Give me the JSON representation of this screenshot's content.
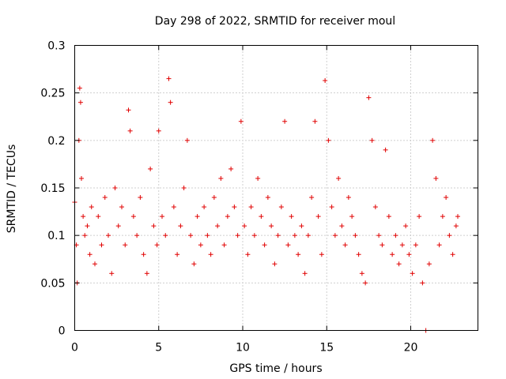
{
  "chart_data": {
    "type": "scatter",
    "title": "Day 298 of 2022, SRMTID for receiver moul",
    "xlabel": "GPS time / hours",
    "ylabel": "SRMTID / TECUs",
    "xlim": [
      0,
      24
    ],
    "ylim": [
      0,
      0.3
    ],
    "x_ticks": [
      0,
      5,
      10,
      15,
      20
    ],
    "x_tick_labels": [
      "0",
      "5",
      "10",
      "15",
      "20"
    ],
    "y_ticks": [
      0,
      0.05,
      0.1,
      0.15,
      0.2,
      0.25,
      0.3
    ],
    "y_tick_labels": [
      "0",
      "0.05",
      "0.1",
      "0.15",
      "0.2",
      "0.25",
      "0.3"
    ],
    "grid": true,
    "marker": "plus",
    "color": "#e00000",
    "series": [
      {
        "name": "SRMTID",
        "x": [
          0.0,
          0.1,
          0.15,
          0.25,
          0.3,
          0.35,
          0.4,
          0.5,
          0.6,
          0.75,
          0.9,
          1.0,
          1.2,
          1.4,
          1.6,
          1.8,
          2.0,
          2.2,
          2.4,
          2.6,
          2.8,
          3.0,
          3.2,
          3.3,
          3.5,
          3.7,
          3.9,
          4.1,
          4.3,
          4.5,
          4.7,
          4.9,
          5.0,
          5.2,
          5.4,
          5.6,
          5.7,
          5.9,
          6.1,
          6.3,
          6.5,
          6.7,
          6.9,
          7.1,
          7.3,
          7.5,
          7.7,
          7.9,
          8.1,
          8.3,
          8.5,
          8.7,
          8.9,
          9.1,
          9.3,
          9.5,
          9.7,
          9.9,
          10.1,
          10.3,
          10.5,
          10.7,
          10.9,
          11.1,
          11.3,
          11.5,
          11.7,
          11.9,
          12.1,
          12.3,
          12.5,
          12.7,
          12.9,
          13.1,
          13.3,
          13.5,
          13.7,
          13.9,
          14.1,
          14.3,
          14.5,
          14.7,
          14.9,
          15.1,
          15.3,
          15.5,
          15.7,
          15.9,
          16.1,
          16.3,
          16.5,
          16.7,
          16.9,
          17.1,
          17.3,
          17.5,
          17.7,
          17.9,
          18.1,
          18.3,
          18.5,
          18.7,
          18.9,
          19.1,
          19.3,
          19.5,
          19.7,
          19.9,
          20.1,
          20.3,
          20.5,
          20.7,
          20.9,
          21.1,
          21.3,
          21.5,
          21.7,
          21.9,
          22.1,
          22.3,
          22.5,
          22.7,
          22.8
        ],
        "y": [
          0.135,
          0.09,
          0.05,
          0.2,
          0.255,
          0.24,
          0.16,
          0.12,
          0.1,
          0.11,
          0.08,
          0.13,
          0.07,
          0.12,
          0.09,
          0.14,
          0.1,
          0.06,
          0.15,
          0.11,
          0.13,
          0.09,
          0.232,
          0.21,
          0.12,
          0.1,
          0.14,
          0.08,
          0.06,
          0.17,
          0.11,
          0.09,
          0.21,
          0.12,
          0.1,
          0.265,
          0.24,
          0.13,
          0.08,
          0.11,
          0.15,
          0.2,
          0.1,
          0.07,
          0.12,
          0.09,
          0.13,
          0.1,
          0.08,
          0.14,
          0.11,
          0.16,
          0.09,
          0.12,
          0.17,
          0.13,
          0.1,
          0.22,
          0.11,
          0.08,
          0.13,
          0.1,
          0.16,
          0.12,
          0.09,
          0.14,
          0.11,
          0.07,
          0.1,
          0.13,
          0.22,
          0.09,
          0.12,
          0.1,
          0.08,
          0.11,
          0.06,
          0.1,
          0.14,
          0.22,
          0.12,
          0.08,
          0.263,
          0.2,
          0.13,
          0.1,
          0.16,
          0.11,
          0.09,
          0.14,
          0.12,
          0.1,
          0.08,
          0.06,
          0.05,
          0.245,
          0.2,
          0.13,
          0.1,
          0.09,
          0.19,
          0.12,
          0.08,
          0.1,
          0.07,
          0.09,
          0.11,
          0.08,
          0.06,
          0.09,
          0.12,
          0.05,
          0.0,
          0.07,
          0.2,
          0.16,
          0.09,
          0.12,
          0.14,
          0.1,
          0.08,
          0.11,
          0.12
        ]
      }
    ]
  }
}
